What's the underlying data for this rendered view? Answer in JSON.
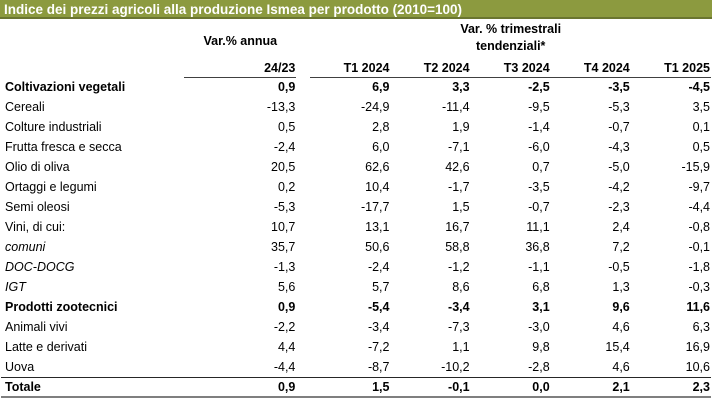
{
  "title_bar": {
    "title": "Indice dei prezzi agricoli alla produzione Ismea per prodotto (2010=100)"
  },
  "colors": {
    "title_bg": "#8c9a3f",
    "title_border": "#6a7530",
    "title_text": "#ffffff",
    "header_rule": "#404040",
    "total_rule": "#262626",
    "bottom_rule": "#7f7f7f"
  },
  "table": {
    "group_headers": {
      "annual": "Var.% annua",
      "quarterly_line1": "Var. % trimestrali",
      "quarterly_line2": "tendenziali*"
    },
    "columns": [
      "24/23",
      "T1 2024",
      "T2 2024",
      "T3 2024",
      "T4 2024",
      "T1 2025"
    ],
    "rows": [
      {
        "label": "Coltivazioni vegetali",
        "style": "bold",
        "values": [
          "0,9",
          "6,9",
          "3,3",
          "-2,5",
          "-3,5",
          "-4,5"
        ]
      },
      {
        "label": "Cereali",
        "style": "normal",
        "values": [
          "-13,3",
          "-24,9",
          "-11,4",
          "-9,5",
          "-5,3",
          "3,5"
        ]
      },
      {
        "label": "Colture industriali",
        "style": "normal",
        "values": [
          "0,5",
          "2,8",
          "1,9",
          "-1,4",
          "-0,7",
          "0,1"
        ]
      },
      {
        "label": "Frutta fresca e secca",
        "style": "normal",
        "values": [
          "-2,4",
          "6,0",
          "-7,1",
          "-6,0",
          "-4,3",
          "0,5"
        ]
      },
      {
        "label": "Olio di oliva",
        "style": "normal",
        "values": [
          "20,5",
          "62,6",
          "42,6",
          "0,7",
          "-5,0",
          "-15,9"
        ]
      },
      {
        "label": "Ortaggi e legumi",
        "style": "normal",
        "values": [
          "0,2",
          "10,4",
          "-1,7",
          "-3,5",
          "-4,2",
          "-9,7"
        ]
      },
      {
        "label": "Semi oleosi",
        "style": "normal",
        "values": [
          "-5,3",
          "-17,7",
          "1,5",
          "-0,7",
          "-2,3",
          "-4,4"
        ]
      },
      {
        "label": "Vini, di cui:",
        "style": "normal",
        "values": [
          "10,7",
          "13,1",
          "16,7",
          "11,1",
          "2,4",
          "-0,8"
        ]
      },
      {
        "label": "comuni",
        "style": "italic",
        "values": [
          "35,7",
          "50,6",
          "58,8",
          "36,8",
          "7,2",
          "-0,1"
        ]
      },
      {
        "label": "DOC-DOCG",
        "style": "italic",
        "values": [
          "-1,3",
          "-2,4",
          "-1,2",
          "-1,1",
          "-0,5",
          "-1,8"
        ]
      },
      {
        "label": "IGT",
        "style": "italic",
        "values": [
          "5,6",
          "5,7",
          "8,6",
          "6,8",
          "1,3",
          "-0,3"
        ]
      },
      {
        "label": "Prodotti zootecnici",
        "style": "bold",
        "values": [
          "0,9",
          "-5,4",
          "-3,4",
          "3,1",
          "9,6",
          "11,6"
        ]
      },
      {
        "label": "Animali vivi",
        "style": "normal",
        "values": [
          "-2,2",
          "-3,4",
          "-7,3",
          "-3,0",
          "4,6",
          "6,3"
        ]
      },
      {
        "label": "Latte e derivati",
        "style": "normal",
        "values": [
          "4,4",
          "-7,2",
          "1,1",
          "9,8",
          "15,4",
          "16,9"
        ]
      },
      {
        "label": "Uova",
        "style": "normal",
        "values": [
          "-4,4",
          "-8,7",
          "-10,2",
          "-2,8",
          "4,6",
          "10,6"
        ]
      },
      {
        "label": "Totale",
        "style": "total",
        "values": [
          "0,9",
          "1,5",
          "-0,1",
          "0,0",
          "2,1",
          "2,3"
        ]
      }
    ]
  }
}
